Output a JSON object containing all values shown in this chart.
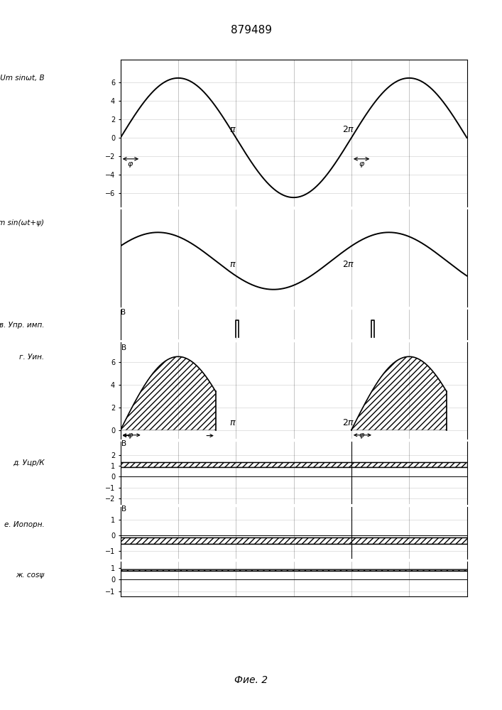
{
  "title": "879489",
  "fig_label": "Фие. 2",
  "panel_a_label": "a, U=Um sinωt, B",
  "panel_b_label": "б i=Im sin(ωt+ψ)",
  "panel_v_label": "в. Упр. имп.",
  "panel_g_label": "г. Уин.",
  "panel_d_label": "д. Уцр/К",
  "panel_e_label": "е. Иопорн.",
  "panel_zh_label": "ж. cosψ",
  "Um": 6.5,
  "phi": 0.55,
  "background": "#ffffff",
  "grid_color": "#999999"
}
